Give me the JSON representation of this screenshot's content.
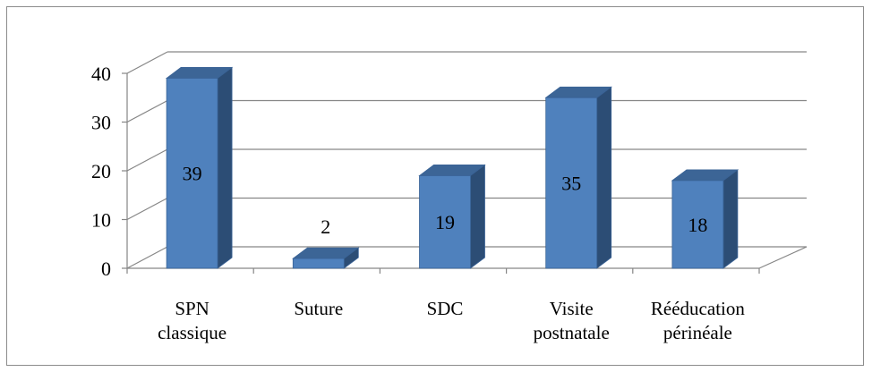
{
  "chart_data": {
    "type": "bar",
    "style": "3d-column",
    "categories": [
      [
        "SPN",
        "classique"
      ],
      [
        "Suture"
      ],
      [
        "SDC"
      ],
      [
        "Visite",
        "postnatale"
      ],
      [
        "Rééducation",
        "périnéale"
      ]
    ],
    "values": [
      39,
      2,
      19,
      35,
      18
    ],
    "data_labels": [
      "39",
      "2",
      "19",
      "35",
      "18"
    ],
    "y_ticks": [
      "0",
      "10",
      "20",
      "30",
      "40"
    ],
    "ylim": [
      0,
      40
    ],
    "grid": true,
    "legend": "none",
    "title": "",
    "xlabel": "",
    "ylabel": "",
    "colors": {
      "bar_front": "#4f81bd",
      "bar_side": "#2c4d75",
      "bar_top": "#3c6596",
      "bar_edge": "#3a6396",
      "gridline": "#868686"
    }
  }
}
